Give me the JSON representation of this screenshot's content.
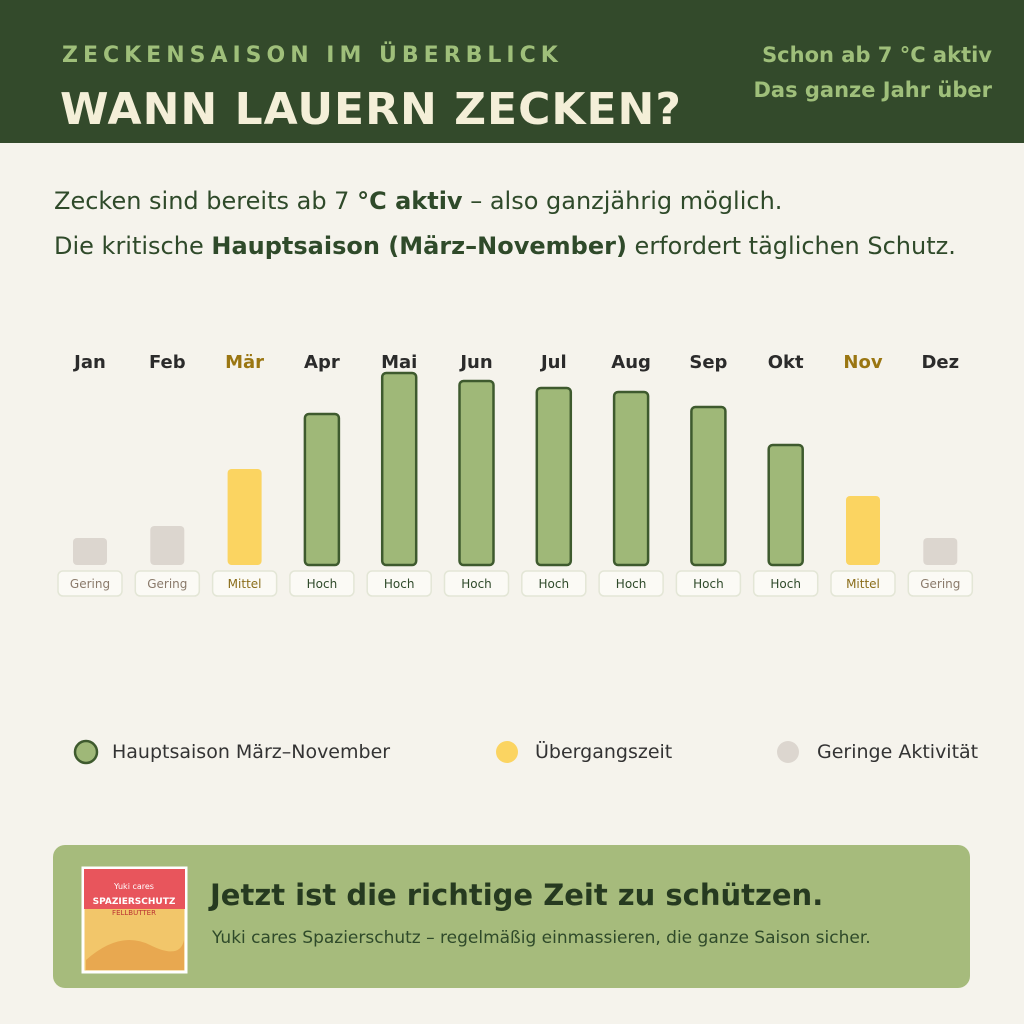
{
  "header": {
    "kicker": "ZECKENSAISON IM ÜBERBLICK",
    "title": "WANN LAUERN ZECKEN?",
    "note1": "Schon ab 7 °C aktiv",
    "note2": "Das ganze Jahr über"
  },
  "intro": {
    "line1": [
      "Zecken sind bereits ab 7 ",
      "°C aktiv",
      " – also ganzjährig möglich."
    ],
    "line2": [
      "Die kritische ",
      "Hauptsaison (März–November)",
      " erfordert täglichen Schutz."
    ]
  },
  "chart_data": {
    "type": "bar",
    "categories": [
      "Jan",
      "Feb",
      "Mär",
      "Apr",
      "Mai",
      "Jun",
      "Jul",
      "Aug",
      "Sep",
      "Okt",
      "Nov",
      "Dez"
    ],
    "values": [
      13.5,
      19.5,
      48,
      75.5,
      96,
      92,
      88.5,
      86.5,
      79,
      60,
      34.5,
      13.5
    ],
    "levels": [
      "Gering",
      "Gering",
      "Mittel",
      "Hoch",
      "Hoch",
      "Hoch",
      "Hoch",
      "Hoch",
      "Hoch",
      "Hoch",
      "Mittel",
      "Gering"
    ],
    "colors": [
      "#dcd6cf",
      "#dcd6cf",
      "#fbd461",
      "#9fb878",
      "#9fb878",
      "#9fb878",
      "#9fb878",
      "#9fb878",
      "#9fb878",
      "#9fb878",
      "#fbd461",
      "#dcd6cf"
    ],
    "ylim": [
      0,
      100
    ],
    "legend": [
      {
        "name": "Hauptsaison März–November",
        "color": "#9fb878"
      },
      {
        "name": "Übergangszeit",
        "color": "#fbd461"
      },
      {
        "name": "Geringe Aktivität",
        "color": "#dcd6cf"
      }
    ]
  },
  "cta": {
    "title": "Jetzt ist die richtige Zeit zu schützen.",
    "text": "Yuki cares Spazierschutz – regelmäßig einmassieren, die ganze Saison sicher.",
    "product": [
      "Yuki cares",
      "SPAZIERSCHUTZ",
      "FELLBUTTER"
    ]
  }
}
